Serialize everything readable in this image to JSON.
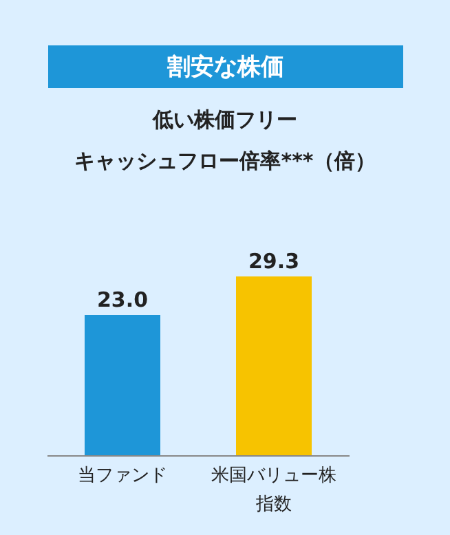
{
  "chart_data": {
    "type": "bar",
    "title": "割安な株価",
    "subtitle": "低い株価フリーキャッシュフロー倍率***（倍）",
    "categories": [
      "当ファンド",
      "米国バリュー株指数"
    ],
    "values": [
      23.0,
      29.3
    ],
    "colors": [
      "#1e96d8",
      "#f7c300"
    ],
    "value_labels": [
      "23.0",
      "29.3"
    ]
  }
}
